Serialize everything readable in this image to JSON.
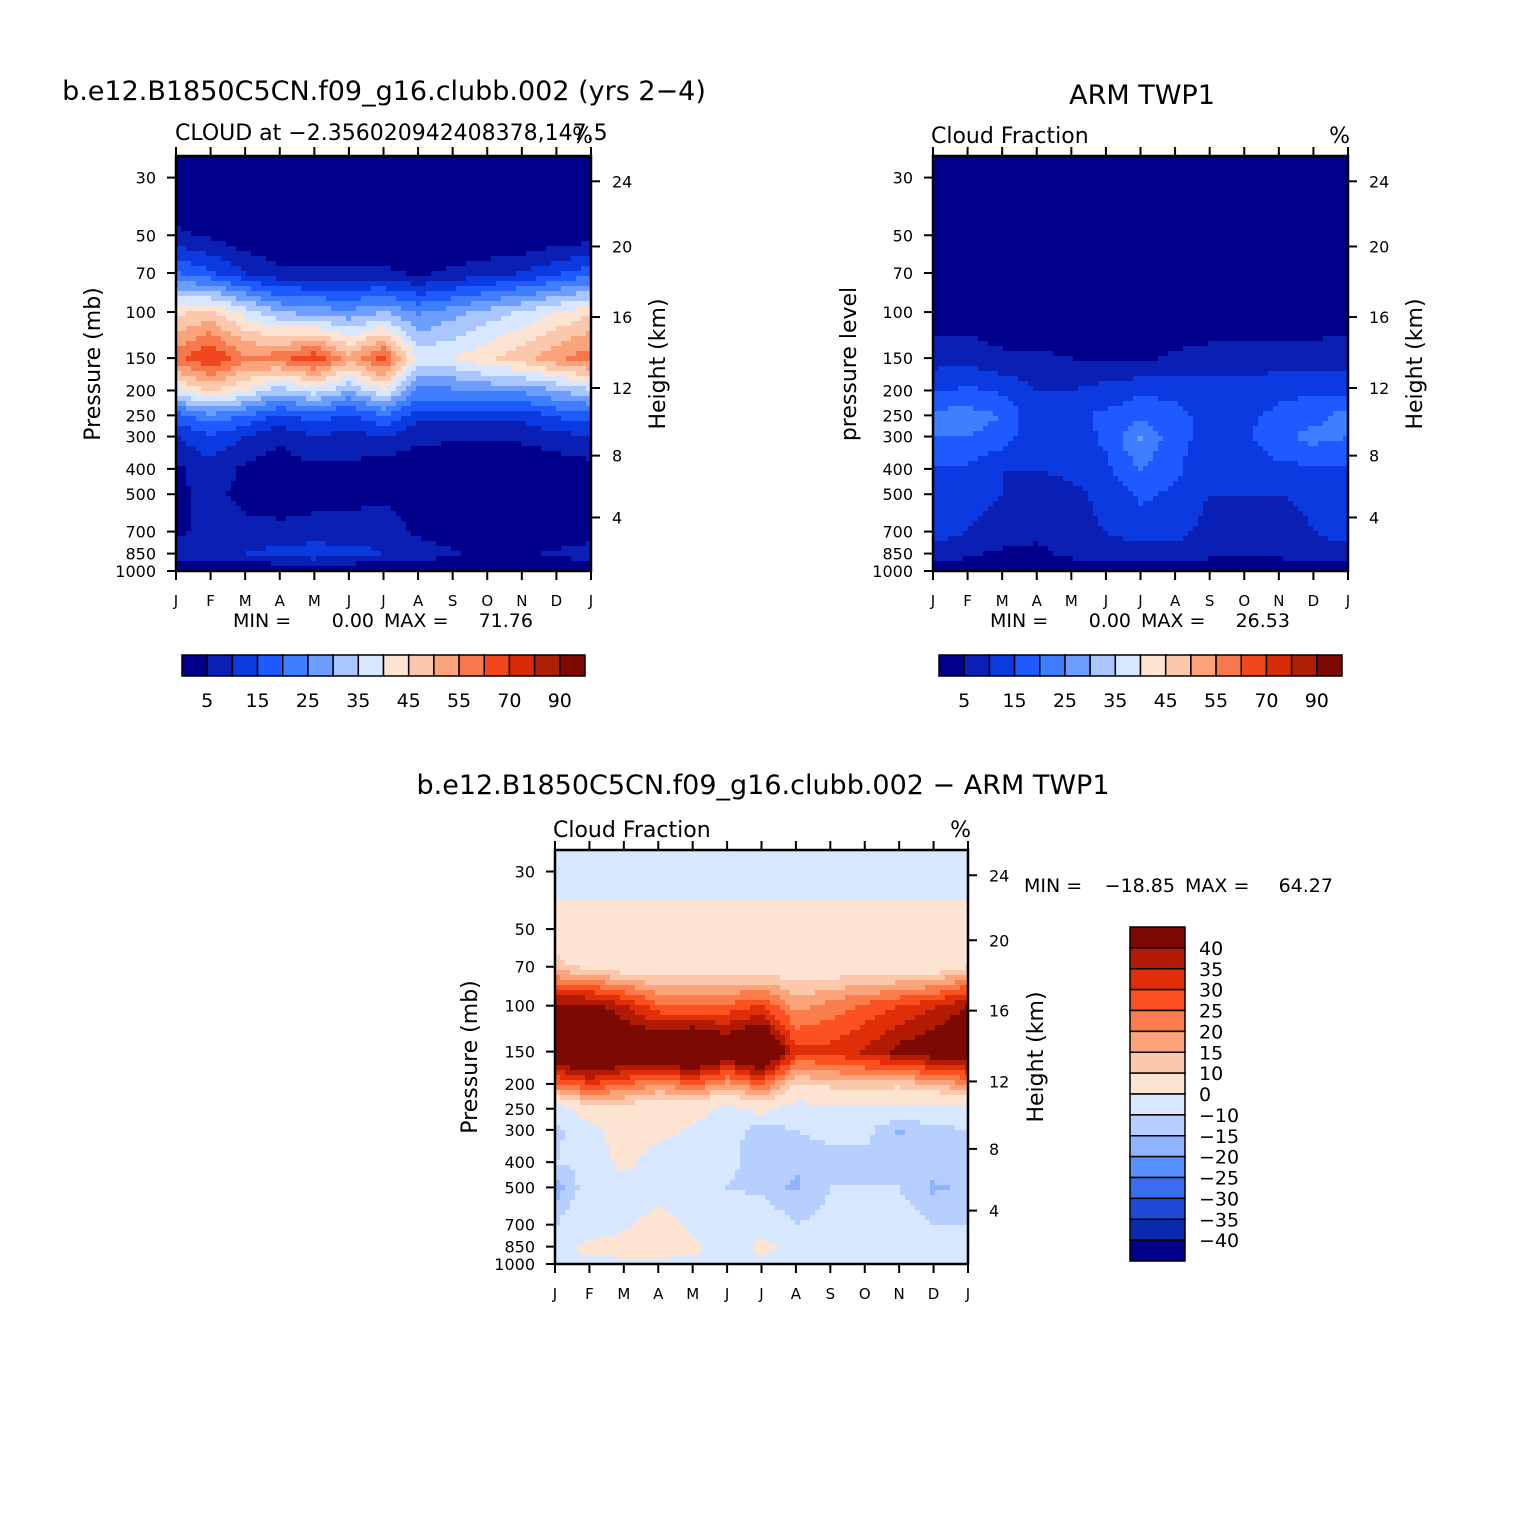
{
  "panels": [
    {
      "id": "model",
      "main_title": "b.e12.B1850C5CN.f09_g16.clubb.002 (yrs 2−4)",
      "subtitle_left": "CLOUD at −2.356020942408378,147.5",
      "subtitle_right": "%",
      "ylabel_left": "Pressure (mb)",
      "ylabel_right": "Height (km)",
      "min_label": "MIN =",
      "min_value": "0.00",
      "max_label": "MAX =",
      "max_value": "71.76"
    },
    {
      "id": "obs",
      "main_title": "ARM TWP1",
      "subtitle_left": "Cloud Fraction",
      "subtitle_right": "%",
      "ylabel_left": "pressure level",
      "ylabel_right": "Height (km)",
      "min_label": "MIN =",
      "min_value": "0.00",
      "max_label": "MAX =",
      "max_value": "26.53"
    },
    {
      "id": "diff",
      "main_title": "b.e12.B1850C5CN.f09_g16.clubb.002 − ARM TWP1",
      "subtitle_left": "Cloud Fraction",
      "subtitle_right": "%",
      "ylabel_left": "Pressure (mb)",
      "ylabel_right": "Height (km)",
      "min_label": "MIN =",
      "min_value": "−18.85",
      "max_label": "MAX =",
      "max_value": "64.27"
    }
  ],
  "axes": {
    "months": [
      "J",
      "F",
      "M",
      "A",
      "M",
      "J",
      "J",
      "A",
      "S",
      "O",
      "N",
      "D",
      "J"
    ],
    "pressure_ticks": [
      "30",
      "50",
      "70",
      "100",
      "150",
      "200",
      "250",
      "300",
      "400",
      "500",
      "700",
      "850",
      "1000"
    ],
    "height_ticks": [
      "24",
      "20",
      "16",
      "12",
      "8",
      "4"
    ]
  },
  "colorbars": {
    "abs": {
      "colors": [
        "#00008b",
        "#0a1fb4",
        "#0a3ae0",
        "#1e5aff",
        "#3f7fff",
        "#6d9dff",
        "#a9c6ff",
        "#d6e7ff",
        "#fde4d2",
        "#fcc8ab",
        "#fba47b",
        "#f8784e",
        "#f1471f",
        "#d72a07",
        "#ac1f05",
        "#7c0a02"
      ],
      "labels": [
        "5",
        "15",
        "25",
        "35",
        "45",
        "55",
        "70",
        "90"
      ]
    },
    "diff": {
      "colors": [
        "#7c0a02",
        "#b31a03",
        "#e02e08",
        "#fb5020",
        "#fb7d4c",
        "#fba47b",
        "#fcc8ab",
        "#fde4d2",
        "#d6e7ff",
        "#b6cfff",
        "#8eb4ff",
        "#5a90ff",
        "#3a6cf0",
        "#1f4ad6",
        "#0a2ab0",
        "#00008b"
      ],
      "labels": [
        "40",
        "35",
        "30",
        "25",
        "20",
        "15",
        "10",
        "0",
        "−10",
        "−15",
        "−20",
        "−25",
        "−30",
        "−35",
        "−40"
      ]
    }
  },
  "chart_data": [
    {
      "type": "heatmap",
      "title": "b.e12.B1850C5CN.f09_g16.clubb.002 (yrs 2−4)",
      "variable": "CLOUD at −2.356020942408378,147.5",
      "units": "%",
      "x": [
        "J",
        "F",
        "M",
        "A",
        "M",
        "J",
        "J",
        "A",
        "S",
        "O",
        "N",
        "D",
        "J"
      ],
      "y": [
        30,
        50,
        70,
        100,
        150,
        200,
        250,
        300,
        400,
        500,
        700,
        850,
        1000
      ],
      "min": 0.0,
      "max": 71.76,
      "values": [
        [
          0,
          0,
          0,
          0,
          0,
          0,
          0,
          0,
          0,
          0,
          0,
          0,
          0
        ],
        [
          6,
          4,
          1,
          0,
          0,
          0,
          0,
          0,
          0,
          0,
          0,
          1,
          2
        ],
        [
          20,
          16,
          10,
          6,
          6,
          6,
          6,
          4,
          6,
          8,
          10,
          14,
          18
        ],
        [
          44,
          46,
          38,
          30,
          28,
          26,
          30,
          24,
          28,
          32,
          36,
          40,
          44
        ],
        [
          58,
          66,
          56,
          58,
          64,
          52,
          62,
          38,
          40,
          44,
          48,
          54,
          58
        ],
        [
          38,
          46,
          40,
          32,
          38,
          30,
          40,
          24,
          24,
          26,
          26,
          30,
          34
        ],
        [
          18,
          24,
          20,
          14,
          18,
          14,
          20,
          12,
          12,
          12,
          12,
          16,
          18
        ],
        [
          10,
          14,
          10,
          6,
          10,
          8,
          10,
          6,
          6,
          6,
          6,
          8,
          10
        ],
        [
          4,
          8,
          4,
          2,
          4,
          4,
          2,
          2,
          1,
          1,
          1,
          2,
          3
        ],
        [
          4,
          6,
          4,
          3,
          4,
          4,
          4,
          2,
          1,
          1,
          1,
          1,
          2
        ],
        [
          4,
          6,
          6,
          6,
          6,
          6,
          8,
          4,
          1,
          1,
          1,
          1,
          2
        ],
        [
          8,
          8,
          10,
          12,
          14,
          12,
          10,
          8,
          6,
          2,
          4,
          6,
          8
        ],
        [
          0,
          0,
          0,
          0,
          0,
          0,
          0,
          0,
          0,
          0,
          0,
          0,
          0
        ]
      ]
    },
    {
      "type": "heatmap",
      "title": "ARM TWP1",
      "variable": "Cloud Fraction",
      "units": "%",
      "x": [
        "J",
        "F",
        "M",
        "A",
        "M",
        "J",
        "J",
        "A",
        "S",
        "O",
        "N",
        "D",
        "J"
      ],
      "y": [
        30,
        50,
        70,
        100,
        150,
        200,
        250,
        300,
        400,
        500,
        700,
        850,
        1000
      ],
      "min": 0.0,
      "max": 26.53,
      "values": [
        [
          0,
          0,
          0,
          0,
          0,
          0,
          0,
          0,
          0,
          0,
          0,
          0,
          0
        ],
        [
          0,
          0,
          0,
          0,
          0,
          0,
          0,
          0,
          0,
          0,
          0,
          0,
          0
        ],
        [
          0,
          0,
          0,
          0,
          0,
          0,
          0,
          0,
          0,
          0,
          0,
          0,
          0
        ],
        [
          2,
          2,
          1,
          1,
          0,
          0,
          0,
          0,
          1,
          1,
          1,
          2,
          2
        ],
        [
          8,
          8,
          6,
          6,
          5,
          4,
          4,
          6,
          7,
          7,
          7,
          7,
          8
        ],
        [
          14,
          16,
          14,
          10,
          10,
          12,
          14,
          14,
          12,
          12,
          14,
          14,
          14
        ],
        [
          22,
          22,
          20,
          10,
          14,
          16,
          18,
          16,
          14,
          14,
          16,
          18,
          22
        ],
        [
          20,
          20,
          18,
          10,
          12,
          16,
          26,
          16,
          14,
          14,
          18,
          22,
          20
        ],
        [
          14,
          14,
          10,
          10,
          12,
          14,
          20,
          16,
          12,
          12,
          14,
          14,
          14
        ],
        [
          12,
          12,
          10,
          6,
          8,
          12,
          16,
          14,
          10,
          10,
          10,
          12,
          12
        ],
        [
          12,
          10,
          8,
          6,
          8,
          10,
          12,
          12,
          8,
          6,
          6,
          10,
          12
        ],
        [
          8,
          6,
          4,
          4,
          6,
          8,
          8,
          8,
          6,
          6,
          6,
          8,
          8
        ],
        [
          2,
          2,
          2,
          2,
          2,
          2,
          2,
          2,
          2,
          2,
          2,
          2,
          2
        ]
      ]
    },
    {
      "type": "heatmap",
      "title": "b.e12.B1850C5CN.f09_g16.clubb.002 − ARM TWP1",
      "variable": "Cloud Fraction",
      "units": "%",
      "x": [
        "J",
        "F",
        "M",
        "A",
        "M",
        "J",
        "J",
        "A",
        "S",
        "O",
        "N",
        "D",
        "J"
      ],
      "y": [
        30,
        50,
        70,
        100,
        150,
        200,
        250,
        300,
        400,
        500,
        700,
        850,
        1000
      ],
      "min": -18.85,
      "max": 64.27,
      "values": [
        [
          -5,
          -5,
          -5,
          -5,
          -5,
          -5,
          -5,
          -5,
          -5,
          -5,
          -5,
          -5,
          -5
        ],
        [
          5,
          5,
          5,
          5,
          5,
          5,
          5,
          5,
          5,
          5,
          5,
          5,
          5
        ],
        [
          12,
          8,
          5,
          5,
          5,
          5,
          5,
          5,
          5,
          5,
          5,
          5,
          10
        ],
        [
          42,
          42,
          36,
          26,
          24,
          26,
          30,
          18,
          22,
          26,
          30,
          34,
          40
        ],
        [
          50,
          58,
          50,
          52,
          58,
          48,
          58,
          32,
          32,
          36,
          42,
          46,
          50
        ],
        [
          24,
          30,
          26,
          20,
          26,
          18,
          26,
          10,
          12,
          14,
          12,
          16,
          20
        ],
        [
          -4,
          6,
          6,
          4,
          4,
          -2,
          4,
          -4,
          -2,
          -2,
          -4,
          -2,
          -4
        ],
        [
          -12,
          -4,
          6,
          4,
          -2,
          -6,
          -14,
          -10,
          -8,
          -8,
          -16,
          -12,
          -10
        ],
        [
          -10,
          -8,
          4,
          -6,
          -6,
          -8,
          -14,
          -14,
          -12,
          -12,
          -10,
          -12,
          -10
        ],
        [
          -18,
          -6,
          -6,
          -4,
          -4,
          -10,
          -12,
          -16,
          -10,
          -10,
          -10,
          -16,
          -14
        ],
        [
          -10,
          -4,
          -2,
          4,
          -2,
          -4,
          -4,
          -10,
          -8,
          -6,
          -6,
          -10,
          -10
        ],
        [
          -2,
          2,
          4,
          4,
          2,
          -4,
          2,
          -2,
          -2,
          -2,
          -2,
          -2,
          -2
        ],
        [
          -2,
          -2,
          -2,
          -2,
          -2,
          -2,
          -2,
          -2,
          -2,
          -2,
          -2,
          -2,
          -2
        ]
      ]
    }
  ]
}
